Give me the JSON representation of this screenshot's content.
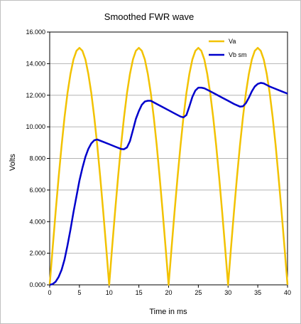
{
  "chart_data": {
    "type": "line",
    "title": "Smoothed FWR wave",
    "xlabel": "Time in ms",
    "ylabel": "Volts",
    "xlim": [
      0,
      40
    ],
    "ylim": [
      0,
      16
    ],
    "x_ticks": [
      "0",
      "5",
      "10",
      "15",
      "20",
      "25",
      "30",
      "35",
      "40"
    ],
    "y_ticks": [
      "0.000",
      "2.000",
      "4.000",
      "6.000",
      "8.000",
      "10.000",
      "12.000",
      "14.000",
      "16.000"
    ],
    "grid": "horizontal",
    "legend_position": "top-right",
    "series": [
      {
        "name": "Va",
        "color": "#f2c200",
        "x": [
          0,
          0.5,
          1,
          1.5,
          2,
          2.5,
          3,
          3.5,
          4,
          4.5,
          5,
          5.5,
          6,
          6.5,
          7,
          7.5,
          8,
          8.5,
          9,
          9.5,
          10,
          10.5,
          11,
          11.5,
          12,
          12.5,
          13,
          13.5,
          14,
          14.5,
          15,
          15.5,
          16,
          16.5,
          17,
          17.5,
          18,
          18.5,
          19,
          19.5,
          20,
          20.5,
          21,
          21.5,
          22,
          22.5,
          23,
          23.5,
          24,
          24.5,
          25,
          25.5,
          26,
          26.5,
          27,
          27.5,
          28,
          28.5,
          29,
          29.5,
          30,
          30.5,
          31,
          31.5,
          32,
          32.5,
          33,
          33.5,
          34,
          34.5,
          35,
          35.5,
          36,
          36.5,
          37,
          37.5,
          38,
          38.5,
          39,
          39.5,
          40
        ],
        "values": [
          0,
          2.35,
          4.64,
          6.81,
          8.82,
          10.61,
          12.14,
          13.36,
          14.27,
          14.81,
          15,
          14.81,
          14.27,
          13.36,
          12.14,
          10.61,
          8.82,
          6.81,
          4.64,
          2.35,
          0,
          2.35,
          4.64,
          6.81,
          8.82,
          10.61,
          12.14,
          13.36,
          14.27,
          14.81,
          15,
          14.81,
          14.27,
          13.36,
          12.14,
          10.61,
          8.82,
          6.81,
          4.64,
          2.35,
          0,
          2.35,
          4.64,
          6.81,
          8.82,
          10.61,
          12.14,
          13.36,
          14.27,
          14.81,
          15,
          14.81,
          14.27,
          13.36,
          12.14,
          10.61,
          8.82,
          6.81,
          4.64,
          2.35,
          0,
          2.35,
          4.64,
          6.81,
          8.82,
          10.61,
          12.14,
          13.36,
          14.27,
          14.81,
          15,
          14.81,
          14.27,
          13.36,
          12.14,
          10.61,
          8.82,
          6.81,
          4.64,
          2.35,
          0
        ]
      },
      {
        "name": "Vb sm",
        "color": "#0000cc",
        "x": [
          0,
          0.5,
          1,
          1.5,
          2,
          2.5,
          3,
          3.5,
          4,
          4.5,
          5,
          5.5,
          6,
          6.5,
          7,
          7.5,
          8,
          9,
          10,
          11,
          12,
          12.5,
          13,
          13.5,
          14,
          14.5,
          15,
          15.5,
          16,
          16.5,
          17,
          18,
          19,
          20,
          21,
          22,
          22.5,
          23,
          23.5,
          24,
          24.5,
          25,
          25.5,
          26,
          26.5,
          27,
          28,
          29,
          30,
          31,
          32,
          32.5,
          33,
          33.5,
          34,
          34.5,
          35,
          35.5,
          36,
          36.5,
          37,
          38,
          39,
          40
        ],
        "values": [
          0,
          0.05,
          0.2,
          0.5,
          0.95,
          1.6,
          2.5,
          3.5,
          4.6,
          5.6,
          6.6,
          7.4,
          8.1,
          8.6,
          8.95,
          9.15,
          9.2,
          9.05,
          8.9,
          8.75,
          8.6,
          8.58,
          8.7,
          9.1,
          9.8,
          10.5,
          11.0,
          11.4,
          11.6,
          11.65,
          11.65,
          11.45,
          11.25,
          11.05,
          10.85,
          10.65,
          10.6,
          10.75,
          11.3,
          11.9,
          12.3,
          12.48,
          12.48,
          12.44,
          12.35,
          12.25,
          12.05,
          11.85,
          11.65,
          11.45,
          11.28,
          11.3,
          11.5,
          11.85,
          12.25,
          12.55,
          12.72,
          12.78,
          12.75,
          12.65,
          12.55,
          12.4,
          12.25,
          12.1
        ]
      }
    ]
  }
}
